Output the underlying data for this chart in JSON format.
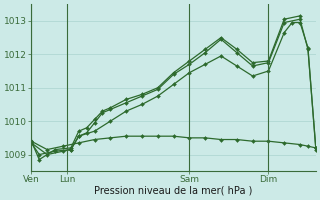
{
  "background_color": "#cceae7",
  "grid_color": "#aad4d0",
  "line_color": "#2d6a2d",
  "title": "Pression niveau de la mer( hPa )",
  "ylim": [
    1008.5,
    1013.5
  ],
  "yticks": [
    1009,
    1010,
    1011,
    1012,
    1013
  ],
  "figsize": [
    3.2,
    2.0
  ],
  "dpi": 100,
  "series1_x": [
    0,
    1,
    3,
    5,
    6,
    7,
    8,
    9,
    10,
    12,
    14,
    16,
    18,
    20,
    22,
    24,
    26,
    28,
    30,
    32,
    34
  ],
  "series1_y": [
    1009.4,
    1008.85,
    1009.15,
    1009.2,
    1009.7,
    1009.8,
    1010.05,
    1010.3,
    1010.4,
    1010.65,
    1010.8,
    1011.0,
    1011.45,
    1011.8,
    1012.15,
    1012.5,
    1012.15,
    1011.75,
    1011.8,
    1013.05,
    1013.15
  ],
  "series2_x": [
    0,
    1,
    3,
    5,
    6,
    7,
    8,
    9,
    10,
    12,
    14,
    16,
    18,
    20,
    22,
    24,
    26,
    28,
    30,
    32,
    34,
    35,
    36
  ],
  "series2_y": [
    1009.35,
    1009.0,
    1009.1,
    1009.15,
    1009.55,
    1009.65,
    1009.95,
    1010.25,
    1010.35,
    1010.55,
    1010.75,
    1010.95,
    1011.4,
    1011.7,
    1012.05,
    1012.45,
    1012.05,
    1011.65,
    1011.75,
    1012.95,
    1013.05,
    1012.15,
    1009.2
  ],
  "series3_x": [
    0,
    2,
    4,
    5,
    6,
    8,
    10,
    12,
    14,
    16,
    18,
    20,
    22,
    24,
    26,
    28,
    30,
    32,
    33,
    34,
    35,
    36
  ],
  "series3_y": [
    1009.35,
    1009.0,
    1009.1,
    1009.15,
    1009.55,
    1009.7,
    1010.0,
    1010.3,
    1010.5,
    1010.75,
    1011.1,
    1011.45,
    1011.7,
    1011.95,
    1011.65,
    1011.35,
    1011.5,
    1012.65,
    1012.95,
    1012.95,
    1012.2,
    1009.15
  ],
  "series_flat_x": [
    0,
    2,
    4,
    6,
    8,
    10,
    12,
    14,
    16,
    18,
    20,
    22,
    24,
    26,
    28,
    30,
    32,
    34,
    35,
    36
  ],
  "series_flat_y": [
    1009.4,
    1009.15,
    1009.25,
    1009.35,
    1009.45,
    1009.5,
    1009.55,
    1009.55,
    1009.55,
    1009.55,
    1009.5,
    1009.5,
    1009.45,
    1009.45,
    1009.4,
    1009.4,
    1009.35,
    1009.3,
    1009.25,
    1009.2
  ],
  "vline_positions": [
    0,
    4.5,
    20,
    30
  ],
  "xtick_positions": [
    0,
    4.5,
    20,
    30
  ],
  "xtick_labels": [
    "Ven",
    "Lun",
    "Sam",
    "Dim"
  ],
  "xlim": [
    0,
    36
  ]
}
